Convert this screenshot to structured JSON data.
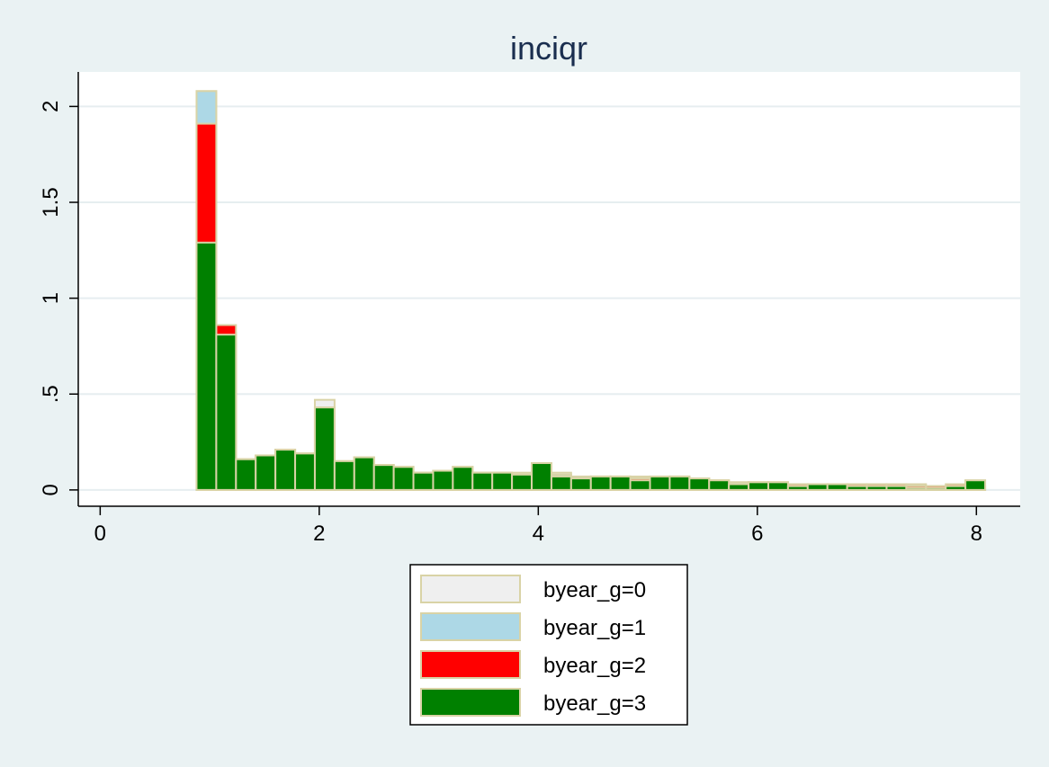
{
  "chart_data": {
    "type": "bar",
    "title": "inciqr",
    "xlabel": "",
    "ylabel": "",
    "xlim": [
      -0.2,
      8.4
    ],
    "ylim": [
      -0.085,
      2.18
    ],
    "x_ticks": [
      0,
      2,
      4,
      6,
      8
    ],
    "x_tick_labels": [
      "0",
      "2",
      "4",
      "6",
      "8"
    ],
    "y_ticks": [
      0,
      0.5,
      1,
      1.5,
      2
    ],
    "y_tick_labels": [
      "0",
      ".5",
      "1",
      "1.5",
      "2"
    ],
    "grid": true,
    "legend_position": "bottom",
    "bin_width": 0.18,
    "x": [
      0.97,
      1.15,
      1.33,
      1.51,
      1.69,
      1.87,
      2.05,
      2.23,
      2.41,
      2.59,
      2.77,
      2.95,
      3.13,
      3.31,
      3.49,
      3.67,
      3.85,
      4.03,
      4.21,
      4.39,
      4.57,
      4.75,
      4.93,
      5.11,
      5.29,
      5.47,
      5.65,
      5.83,
      6.01,
      6.19,
      6.37,
      6.55,
      6.73,
      6.91,
      7.09,
      7.27,
      7.45,
      7.63,
      7.81,
      7.99
    ],
    "series": [
      {
        "name": "byear_g=0",
        "color": "#efefef",
        "values": [
          2.08,
          0.76,
          0.16,
          0.18,
          0.21,
          0.19,
          0.47,
          0.15,
          0.17,
          0.13,
          0.12,
          0.09,
          0.1,
          0.12,
          0.09,
          0.09,
          0.09,
          0.11,
          0.09,
          0.07,
          0.07,
          0.07,
          0.07,
          0.06,
          0.07,
          0.06,
          0.05,
          0.04,
          0.04,
          0.04,
          0.03,
          0.03,
          0.03,
          0.03,
          0.03,
          0.03,
          0.03,
          0.02,
          0.02,
          0.02
        ]
      },
      {
        "name": "byear_g=1",
        "color": "#add8e6",
        "values": [
          2.08,
          0.82,
          0.16,
          0.18,
          0.21,
          0.19,
          0.41,
          0.15,
          0.17,
          0.13,
          0.12,
          0.09,
          0.1,
          0.12,
          0.09,
          0.09,
          0.08,
          0.1,
          0.08,
          0.07,
          0.07,
          0.07,
          0.06,
          0.06,
          0.07,
          0.06,
          0.05,
          0.04,
          0.04,
          0.04,
          0.03,
          0.03,
          0.03,
          0.03,
          0.03,
          0.03,
          0.02,
          0.02,
          0.02,
          0.02
        ]
      },
      {
        "name": "byear_g=2",
        "color": "#ff0000",
        "values": [
          1.91,
          0.86,
          0.16,
          0.18,
          0.21,
          0.19,
          0.43,
          0.15,
          0.17,
          0.13,
          0.12,
          0.09,
          0.1,
          0.12,
          0.09,
          0.09,
          0.08,
          0.14,
          0.07,
          0.06,
          0.07,
          0.07,
          0.06,
          0.07,
          0.07,
          0.06,
          0.05,
          0.03,
          0.04,
          0.04,
          0.03,
          0.03,
          0.03,
          0.03,
          0.03,
          0.03,
          0.02,
          0.02,
          0.03,
          0.05
        ]
      },
      {
        "name": "byear_g=3",
        "color": "#008000",
        "values": [
          1.29,
          0.81,
          0.16,
          0.18,
          0.21,
          0.19,
          0.43,
          0.15,
          0.17,
          0.13,
          0.12,
          0.09,
          0.1,
          0.12,
          0.09,
          0.09,
          0.08,
          0.14,
          0.07,
          0.06,
          0.07,
          0.07,
          0.05,
          0.07,
          0.07,
          0.06,
          0.05,
          0.03,
          0.04,
          0.04,
          0.02,
          0.03,
          0.03,
          0.02,
          0.02,
          0.02,
          0.01,
          0.01,
          0.02,
          0.05
        ]
      }
    ]
  }
}
